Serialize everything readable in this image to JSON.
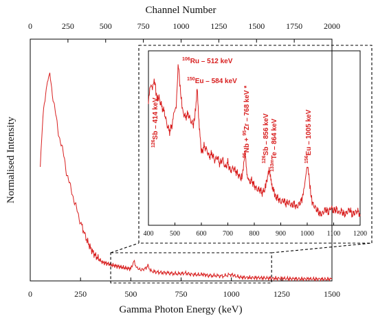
{
  "chart_data": [
    {
      "type": "line",
      "xlabel": "Gamma Photon Energy (keV)",
      "ylabel": "Normalised Intensity",
      "top_xlabel": "Channel Number",
      "xlim": [
        0,
        1500
      ],
      "top_xlim": [
        0,
        2000
      ],
      "x_ticks": [
        "0",
        "250",
        "500",
        "750",
        "1000",
        "1250",
        "1500"
      ],
      "top_x_ticks": [
        "0",
        "250",
        "500",
        "750",
        "1000",
        "1250",
        "1500",
        "1750",
        "2000"
      ],
      "y_ticks_labeled": false,
      "grid": false,
      "line_color": "#d81e1e",
      "series": [
        {
          "x": [
            50,
            60,
            70,
            80,
            88,
            95,
            100,
            110,
            120,
            130,
            140,
            150,
            160,
            170,
            180,
            190,
            200,
            210,
            220,
            230,
            240,
            250,
            265,
            280,
            300,
            320,
            340,
            360,
            380,
            400,
            420,
            440,
            460,
            480,
            500,
            515,
            530,
            550,
            570,
            585,
            600,
            630,
            660,
            700,
            740,
            770,
            800,
            830,
            860,
            880,
            920,
            960,
            1000,
            1020,
            1050,
            1100,
            1150,
            1200,
            1250,
            1300,
            1350,
            1400,
            1450,
            1500
          ],
          "y": [
            0.52,
            0.7,
            0.82,
            0.88,
            0.92,
            0.95,
            0.93,
            0.86,
            0.8,
            0.74,
            0.68,
            0.64,
            0.6,
            0.56,
            0.5,
            0.46,
            0.43,
            0.4,
            0.36,
            0.33,
            0.3,
            0.27,
            0.23,
            0.19,
            0.15,
            0.12,
            0.1,
            0.085,
            0.08,
            0.075,
            0.07,
            0.065,
            0.062,
            0.058,
            0.055,
            0.09,
            0.06,
            0.05,
            0.055,
            0.07,
            0.045,
            0.04,
            0.038,
            0.035,
            0.032,
            0.036,
            0.03,
            0.028,
            0.03,
            0.025,
            0.024,
            0.022,
            0.03,
            0.022,
            0.016,
            0.015,
            0.014,
            0.012,
            0.011,
            0.01,
            0.009,
            0.009,
            0.008,
            0.008
          ]
        }
      ],
      "zoom_region": {
        "xlim": [
          400,
          1200
        ]
      }
    },
    {
      "type": "line",
      "xlim": [
        400,
        1200
      ],
      "x_ticks": [
        "400",
        "500",
        "600",
        "700",
        "800",
        "900",
        "1000",
        "1100",
        "1200"
      ],
      "grid": false,
      "series": [
        {
          "x": [
            400,
            405,
            410,
            415,
            420,
            425,
            430,
            435,
            440,
            450,
            460,
            470,
            480,
            490,
            495,
            500,
            505,
            510,
            512,
            515,
            520,
            525,
            530,
            540,
            550,
            560,
            570,
            575,
            580,
            584,
            588,
            595,
            600,
            610,
            620,
            630,
            640,
            650,
            660,
            670,
            680,
            690,
            700,
            710,
            720,
            730,
            740,
            750,
            755,
            760,
            765,
            768,
            772,
            776,
            780,
            790,
            800,
            810,
            820,
            830,
            840,
            845,
            850,
            856,
            860,
            864,
            868,
            875,
            880,
            890,
            900,
            910,
            920,
            930,
            940,
            950,
            960,
            970,
            980,
            985,
            990,
            995,
            1000,
            1005,
            1010,
            1015,
            1020,
            1030,
            1040,
            1050,
            1060,
            1070,
            1080,
            1090,
            1100,
            1110,
            1120,
            1130,
            1140,
            1150,
            1160,
            1170,
            1180,
            1190,
            1200
          ],
          "y": [
            0.68,
            0.76,
            0.78,
            0.76,
            0.8,
            0.79,
            0.72,
            0.7,
            0.71,
            0.66,
            0.63,
            0.56,
            0.52,
            0.56,
            0.62,
            0.64,
            0.66,
            0.82,
            0.9,
            0.86,
            0.76,
            0.69,
            0.63,
            0.6,
            0.62,
            0.58,
            0.56,
            0.6,
            0.68,
            0.76,
            0.64,
            0.5,
            0.4,
            0.44,
            0.42,
            0.38,
            0.4,
            0.36,
            0.38,
            0.34,
            0.37,
            0.32,
            0.35,
            0.3,
            0.32,
            0.3,
            0.28,
            0.26,
            0.28,
            0.34,
            0.4,
            0.36,
            0.3,
            0.26,
            0.24,
            0.25,
            0.22,
            0.2,
            0.2,
            0.18,
            0.2,
            0.24,
            0.26,
            0.32,
            0.27,
            0.24,
            0.22,
            0.18,
            0.16,
            0.15,
            0.13,
            0.14,
            0.12,
            0.13,
            0.11,
            0.12,
            0.1,
            0.12,
            0.14,
            0.18,
            0.22,
            0.28,
            0.33,
            0.3,
            0.22,
            0.16,
            0.12,
            0.1,
            0.08,
            0.06,
            0.07,
            0.09,
            0.07,
            0.1,
            0.08,
            0.09,
            0.07,
            0.08,
            0.06,
            0.07,
            0.09,
            0.06,
            0.07,
            0.08,
            0.06
          ]
        }
      ],
      "annotations": [
        {
          "sup": "126",
          "text": "Sb – 414 keV",
          "x": 414
        },
        {
          "sup": "106",
          "text": "Ru – 512 keV",
          "x": 512
        },
        {
          "sup": "150",
          "text": "Eu – 584 keV",
          "x": 584
        },
        {
          "sup": "95",
          "text": "Nb + ",
          "sup2": "95",
          "text2": "Zr – 768 keV *",
          "x": 768
        },
        {
          "sup": "126",
          "text": "Sb – 856 keV",
          "x": 856
        },
        {
          "sup": "133m",
          "text": "Te – 864 keV",
          "x": 864
        },
        {
          "sup": "156",
          "text": "Eu – 1005 keV",
          "x": 1005
        }
      ]
    }
  ]
}
